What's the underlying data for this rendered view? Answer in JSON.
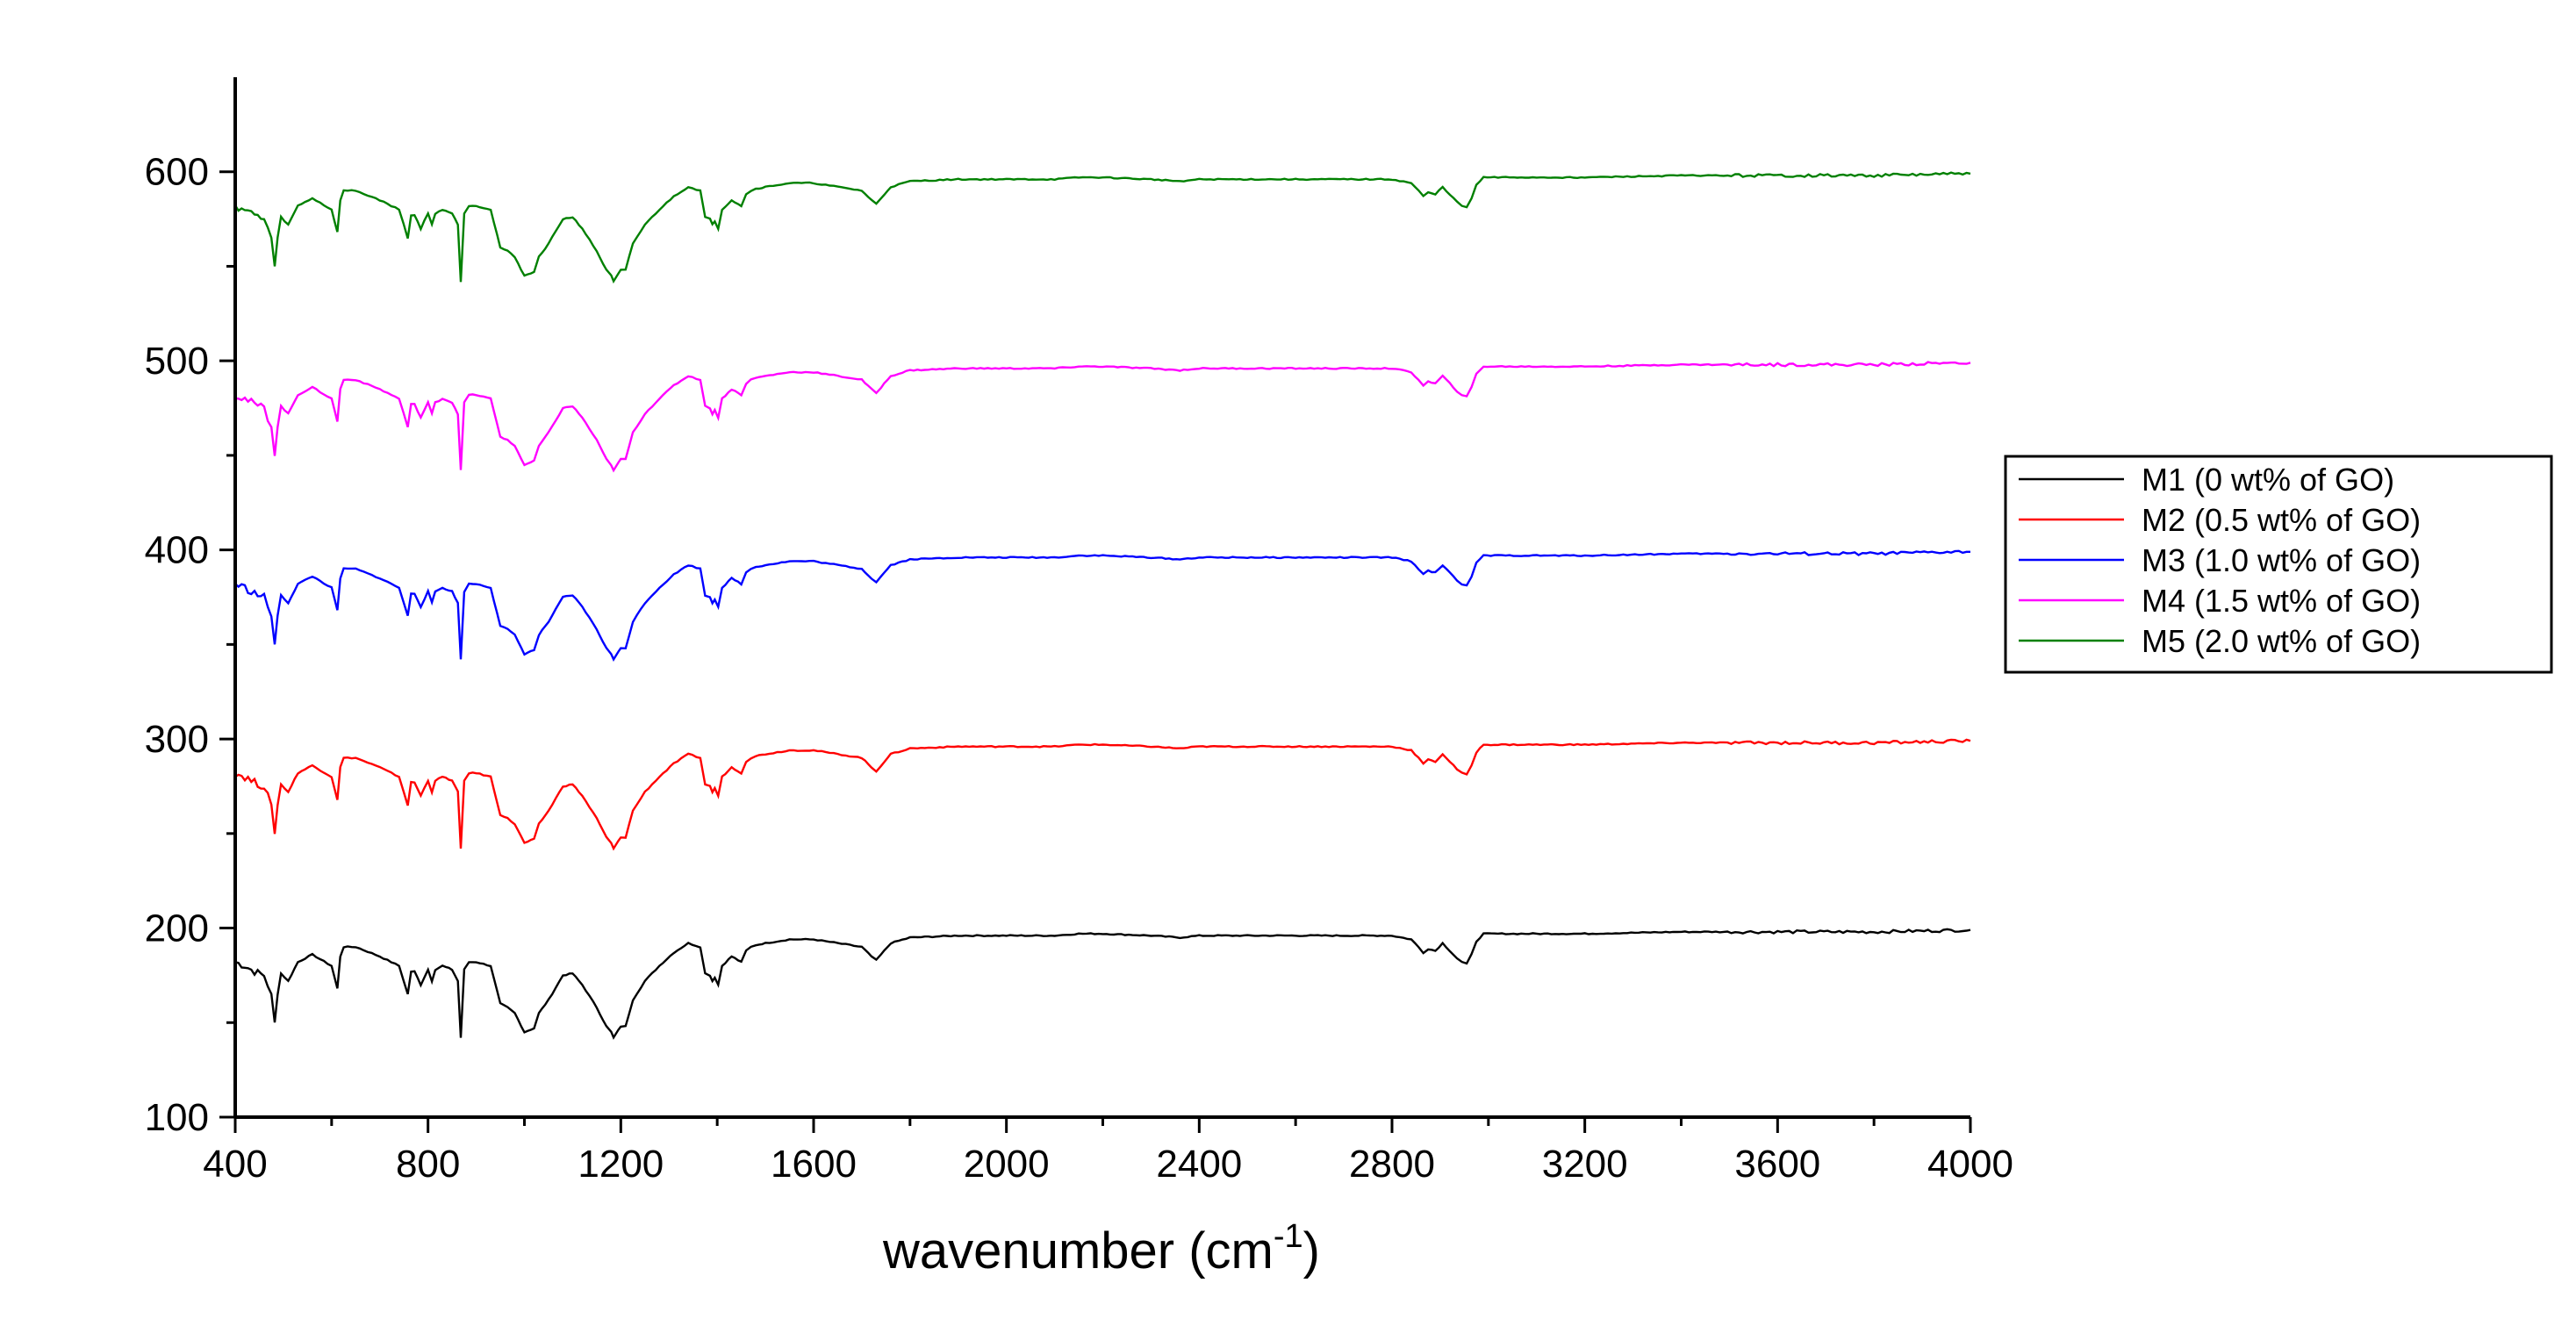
{
  "chart_data": {
    "type": "line",
    "title": "",
    "xlabel": "wavenumber (cm",
    "xlabel_sup": "-1",
    "xlabel_close": ")",
    "ylabel": "",
    "xlim": [
      400,
      4000
    ],
    "ylim": [
      100,
      650
    ],
    "xticks": [
      400,
      800,
      1200,
      1600,
      2000,
      2400,
      2800,
      3200,
      3600,
      4000
    ],
    "yticks": [
      100,
      200,
      300,
      400,
      500,
      600
    ],
    "grid": false,
    "legend_position": "right",
    "base_spectrum": {
      "x": [
        400,
        420,
        440,
        460,
        475,
        482,
        488,
        495,
        510,
        530,
        560,
        600,
        612,
        618,
        625,
        650,
        700,
        740,
        758,
        765,
        772,
        785,
        800,
        808,
        815,
        830,
        850,
        862,
        868,
        875,
        885,
        900,
        930,
        950,
        965,
        980,
        1000,
        1020,
        1030,
        1050,
        1080,
        1100,
        1120,
        1150,
        1170,
        1180,
        1185,
        1195,
        1200,
        1210,
        1225,
        1250,
        1280,
        1310,
        1340,
        1365,
        1375,
        1385,
        1390,
        1395,
        1402,
        1410,
        1430,
        1450,
        1460,
        1470,
        1480,
        1500,
        1550,
        1600,
        1650,
        1700,
        1720,
        1730,
        1740,
        1760,
        1800,
        1900,
        2000,
        2100,
        2150,
        2200,
        2300,
        2360,
        2400,
        2500,
        2600,
        2700,
        2800,
        2840,
        2855,
        2865,
        2875,
        2890,
        2905,
        2920,
        2935,
        2945,
        2955,
        2965,
        2975,
        2990,
        3020,
        3100,
        3200,
        3400,
        3600,
        3800,
        4000
      ],
      "y": [
        182,
        180,
        177,
        175,
        165,
        150,
        165,
        176,
        172,
        182,
        186,
        180,
        168,
        185,
        190,
        190,
        185,
        180,
        165,
        177,
        177,
        170,
        178,
        172,
        178,
        180,
        178,
        172,
        142,
        178,
        182,
        182,
        180,
        160,
        158,
        155,
        145,
        147,
        155,
        162,
        175,
        176,
        170,
        158,
        148,
        145,
        142,
        146,
        148,
        148,
        162,
        172,
        180,
        187,
        192,
        190,
        176,
        175,
        172,
        174,
        170,
        180,
        185,
        182,
        188,
        190,
        191,
        192,
        194,
        194,
        192,
        190,
        185,
        183,
        186,
        192,
        195,
        196,
        196,
        196,
        197,
        197,
        196,
        195,
        196,
        196,
        196,
        196,
        196,
        194,
        190,
        187,
        189,
        188,
        192,
        188,
        184,
        182,
        181,
        186,
        193,
        197,
        197,
        197,
        197,
        198,
        198,
        198,
        199
      ]
    },
    "series": [
      {
        "name": "M1 (0 wt% of GO)",
        "color": "#000000",
        "offset": 0
      },
      {
        "name": "M2 (0.5 wt% of GO)",
        "color": "#ff0000",
        "offset": 100
      },
      {
        "name": "M3 (1.0 wt% of GO)",
        "color": "#0000ff",
        "offset": 200
      },
      {
        "name": "M4 (1.5 wt% of GO)",
        "color": "#ff00ff",
        "offset": 300
      },
      {
        "name": "M5 (2.0 wt% of GO)",
        "color": "#008000",
        "offset": 400
      }
    ]
  }
}
